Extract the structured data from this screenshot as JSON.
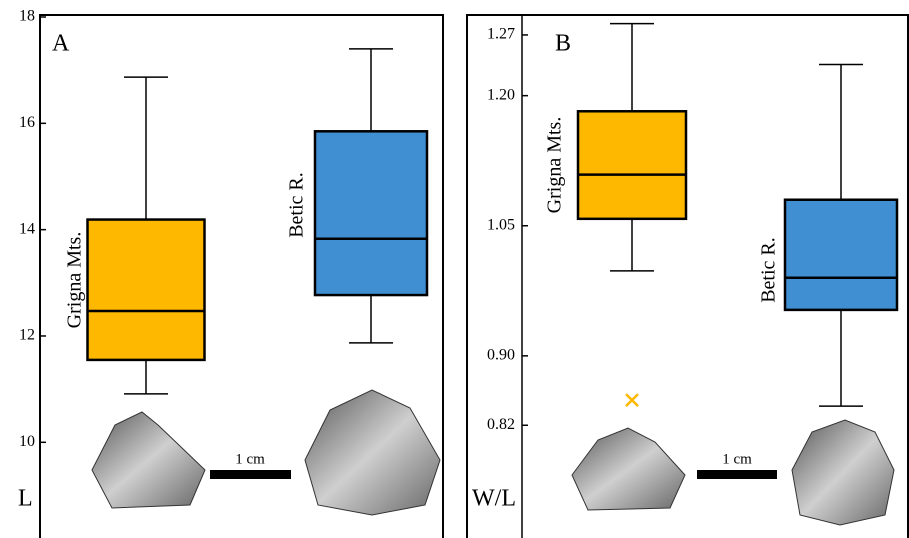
{
  "chart_data": [
    {
      "type": "box",
      "panel_label": "A",
      "y_label": "L",
      "scale_label": "1 cm",
      "ylim": [
        8.2,
        18
      ],
      "yticks": [
        10,
        12,
        14,
        16,
        18
      ],
      "series": [
        {
          "name": "Grigna Mts.",
          "color": "#ffb800",
          "whisker_low": 10.91,
          "q1": 11.55,
          "median": 12.47,
          "q3": 14.19,
          "whisker_high": 16.87
        },
        {
          "name": "Betic R.",
          "color": "#3f8fd2",
          "whisker_low": 11.87,
          "q1": 12.77,
          "median": 13.83,
          "q3": 15.85,
          "whisker_high": 17.4
        }
      ]
    },
    {
      "type": "box",
      "panel_label": "B",
      "y_label": "W/L",
      "scale_label": "1 cm",
      "ylim": [
        0.69,
        1.293
      ],
      "yticks": [
        0.82,
        {
          "value": 0.9,
          "label": "0.90"
        },
        1.05,
        {
          "value": 1.2,
          "label": "1.20"
        },
        1.27
      ],
      "series": [
        {
          "name": "Grigna Mts.",
          "color": "#ffb800",
          "whisker_low": 0.998,
          "q1": 1.058,
          "median": 1.109,
          "q3": 1.182,
          "whisker_high": 1.283,
          "outliers": [
            0.849
          ]
        },
        {
          "name": "Betic R.",
          "color": "#3f8fd2",
          "whisker_low": 0.842,
          "q1": 0.953,
          "median": 0.99,
          "q3": 1.08,
          "whisker_high": 1.236
        }
      ]
    }
  ]
}
